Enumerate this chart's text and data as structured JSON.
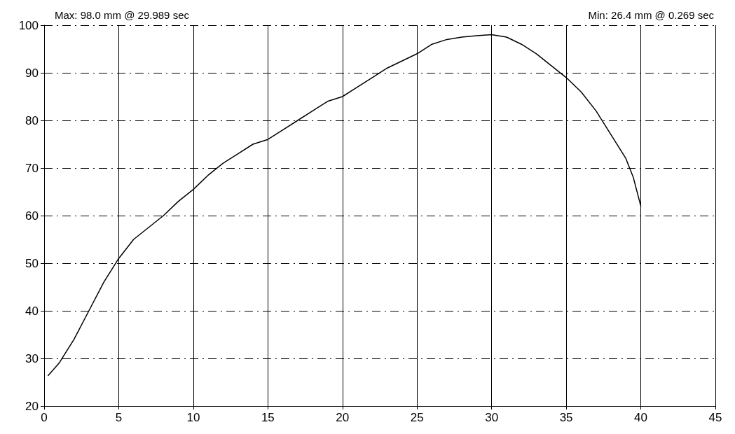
{
  "chart_data": {
    "type": "line",
    "annotations": [
      "Max: 98.0 mm @ 29.989 sec",
      "Min: 26.4 mm @ 0.269 sec"
    ],
    "x": [
      0.269,
      1,
      2,
      3,
      4,
      5,
      6,
      7,
      8,
      9,
      10,
      11,
      12,
      13,
      14,
      15,
      16,
      17,
      18,
      19,
      20,
      21,
      22,
      23,
      24,
      25,
      26,
      27,
      28,
      29,
      29.989,
      31,
      32,
      33,
      34,
      35,
      36,
      37,
      38,
      39,
      39.5,
      40
    ],
    "series": [
      {
        "color": "#000000",
        "values": [
          26.4,
          29,
          34,
          40,
          46,
          51,
          55,
          57.5,
          60,
          63,
          65.5,
          68.5,
          71,
          73,
          75,
          76,
          78,
          80,
          82,
          84,
          85,
          87,
          89,
          91,
          92.5,
          94,
          96,
          97,
          97.5,
          97.8,
          98.0,
          97.5,
          96,
          94,
          91.5,
          89,
          86,
          82,
          77,
          72,
          68,
          62
        ]
      }
    ],
    "xlim": [
      0,
      45
    ],
    "xticks": [
      0,
      5,
      10,
      15,
      20,
      25,
      30,
      35,
      40,
      45
    ],
    "ylim": [
      20,
      100
    ],
    "yticks": [
      20,
      30,
      40,
      50,
      60,
      70,
      80,
      90,
      100
    ],
    "grid": true,
    "marker": "none",
    "line_style": "solid"
  }
}
